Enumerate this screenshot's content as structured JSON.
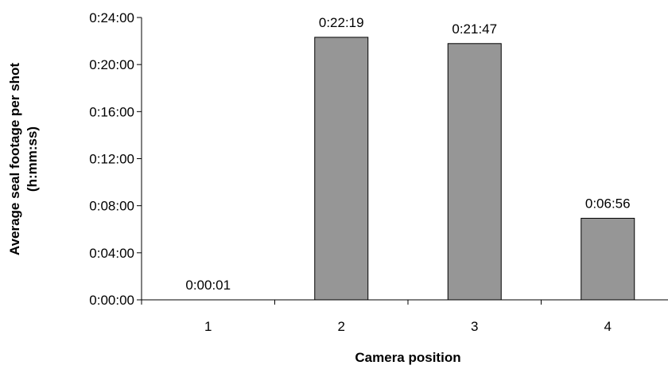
{
  "chart_data": {
    "type": "bar",
    "categories": [
      "1",
      "2",
      "3",
      "4"
    ],
    "values": [
      "0:00:01",
      "0:22:19",
      "0:21:47",
      "0:06:56"
    ],
    "value_seconds": [
      1,
      1339,
      1307,
      416
    ],
    "data_labels": [
      "0:00:01",
      "0:22:19",
      "0:21:47",
      "0:06:56"
    ],
    "xlabel": "Camera position",
    "ylabel_lines": [
      "Average seal footage per shot",
      "(h:mm:ss)"
    ],
    "y_ticks": [
      "0:00:00",
      "0:04:00",
      "0:08:00",
      "0:12:00",
      "0:16:00",
      "0:20:00",
      "0:24:00"
    ],
    "ylim": [
      "0:00:00",
      "0:24:00"
    ],
    "grid": false,
    "bar_color": "#969696",
    "bar_edge_color": "#000000"
  }
}
